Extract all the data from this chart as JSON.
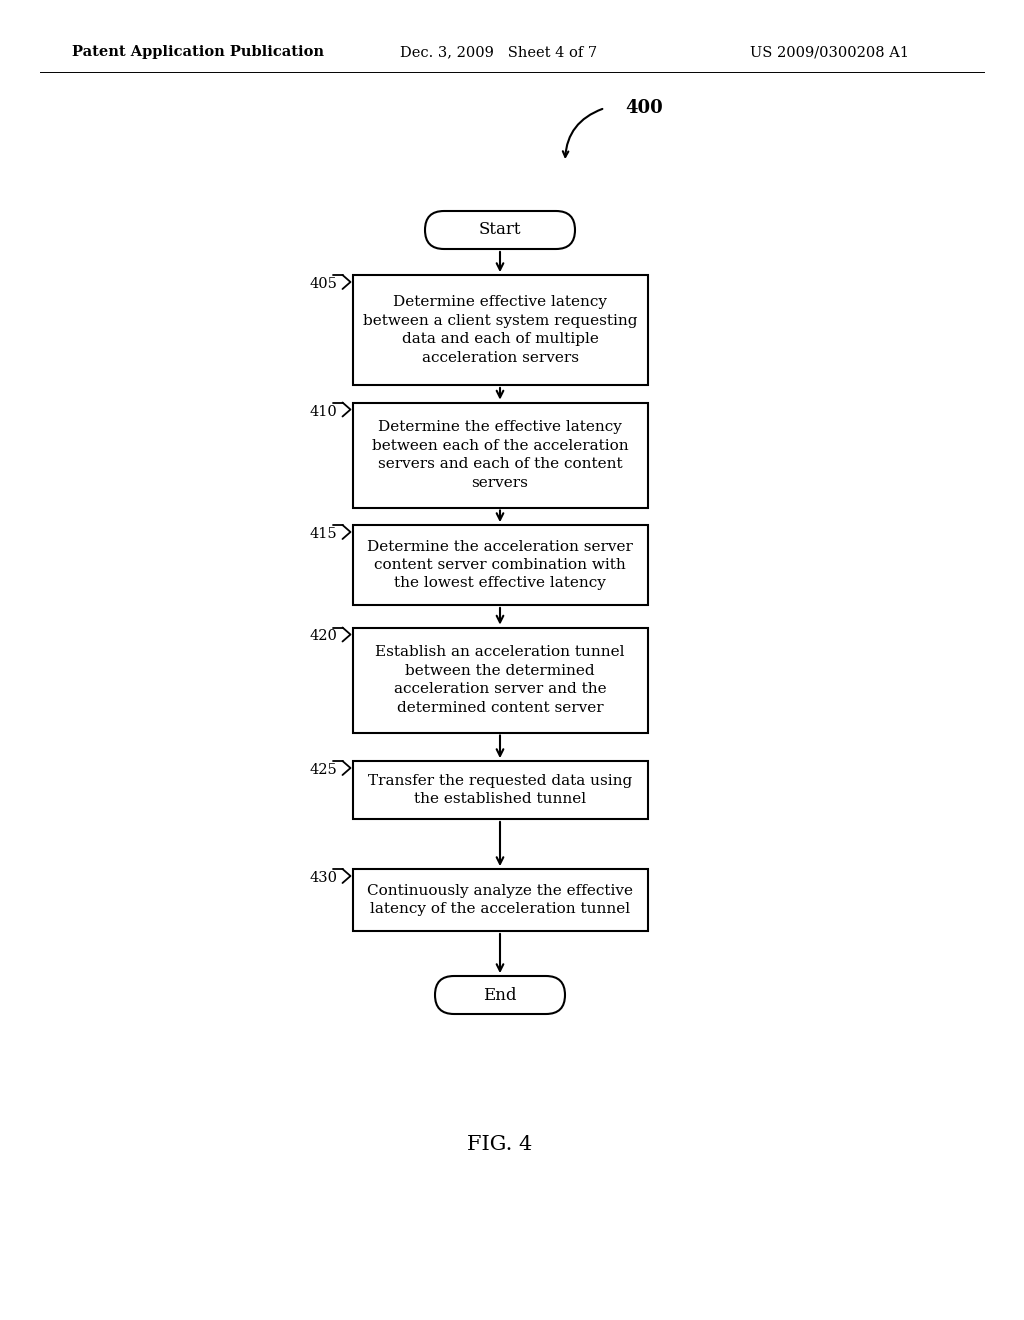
{
  "bg_color": "#ffffff",
  "header_left": "Patent Application Publication",
  "header_center": "Dec. 3, 2009   Sheet 4 of 7",
  "header_right": "US 2009/0300208 A1",
  "fig_label": "FIG. 4",
  "diagram_label": "400",
  "start_label": "Start",
  "end_label": "End",
  "steps": [
    {
      "id": "405",
      "text": "Determine effective latency\nbetween a client system requesting\ndata and each of multiple\nacceleration servers"
    },
    {
      "id": "410",
      "text": "Determine the effective latency\nbetween each of the acceleration\nservers and each of the content\nservers"
    },
    {
      "id": "415",
      "text": "Determine the acceleration server\ncontent server combination with\nthe lowest effective latency"
    },
    {
      "id": "420",
      "text": "Establish an acceleration tunnel\nbetween the determined\nacceleration server and the\ndetermined content server"
    },
    {
      "id": "425",
      "text": "Transfer the requested data using\nthe established tunnel"
    },
    {
      "id": "430",
      "text": "Continuously analyze the effective\nlatency of the acceleration tunnel"
    }
  ]
}
